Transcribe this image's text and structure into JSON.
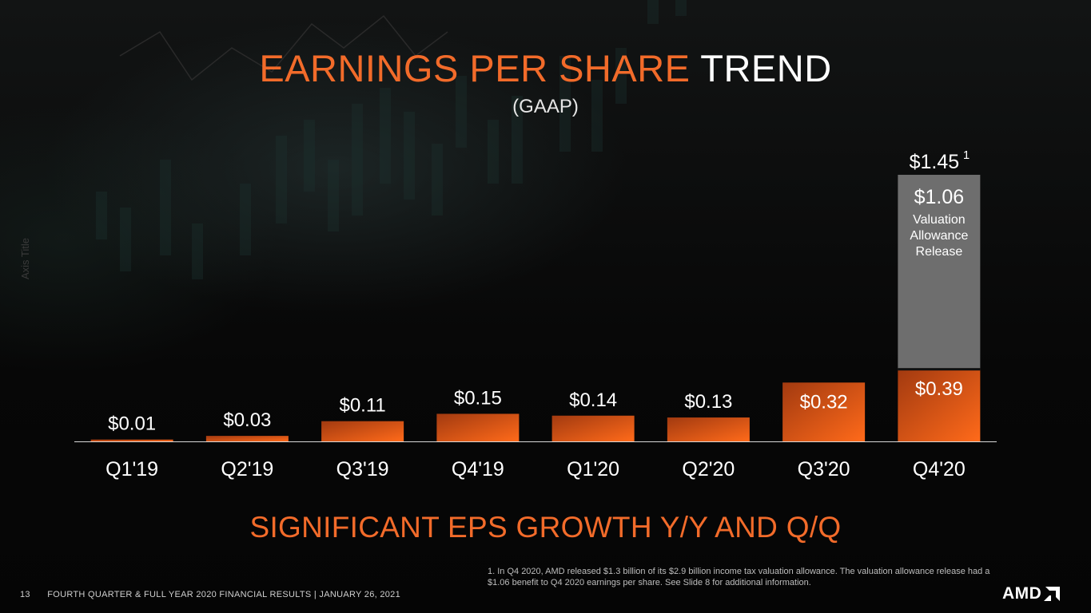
{
  "slide": {
    "title_accent": "EARNINGS PER SHARE",
    "title_rest": "TREND",
    "subtitle": "(GAAP)",
    "axis_title": "Axis Title",
    "tagline": "SIGNIFICANT EPS GROWTH Y/Y AND Q/Q",
    "footnote": "1. In Q4 2020, AMD released $1.3 billion of its $2.9 billion income tax valuation allowance.  The valuation allowance release had a $1.06 benefit to Q4 2020 earnings per share. See Slide 8 for additional information.",
    "page_number": "13",
    "footer_text": "FOURTH QUARTER & FULL YEAR 2020 FINANCIAL RESULTS  |  JANUARY 26, 2021",
    "logo_text": "AMD"
  },
  "colors": {
    "accent": "#f26b2a",
    "bar_dark": "#a23a10",
    "bar_light": "#ff6a1a",
    "stack_grey": "#6e6e6e"
  },
  "chart_data": {
    "type": "bar",
    "stacked": true,
    "categories": [
      "Q1'19",
      "Q2'19",
      "Q3'19",
      "Q4'19",
      "Q1'20",
      "Q2'20",
      "Q3'20",
      "Q4'20"
    ],
    "series": [
      {
        "values": [
          0.01,
          0.03,
          0.11,
          0.15,
          0.14,
          0.13,
          0.32,
          0.39
        ],
        "labels": [
          "$0.01",
          "$0.03",
          "$0.11",
          "$0.15",
          "$0.14",
          "$0.13",
          "$0.32",
          "$0.39"
        ]
      },
      {
        "name": "Valuation Allowance Release",
        "values": [
          null,
          null,
          null,
          null,
          null,
          null,
          null,
          1.06
        ],
        "labels": [
          "",
          "",
          "",
          "",
          "",
          "",
          "",
          "$1.06"
        ]
      }
    ],
    "totals": {
      "index": 7,
      "value": 1.45,
      "label": "$1.45",
      "footnote_marker": "1"
    },
    "ylim": [
      0,
      1.45
    ],
    "xlabel": "",
    "ylabel": "Axis Title",
    "grid": false,
    "legend": "none"
  }
}
